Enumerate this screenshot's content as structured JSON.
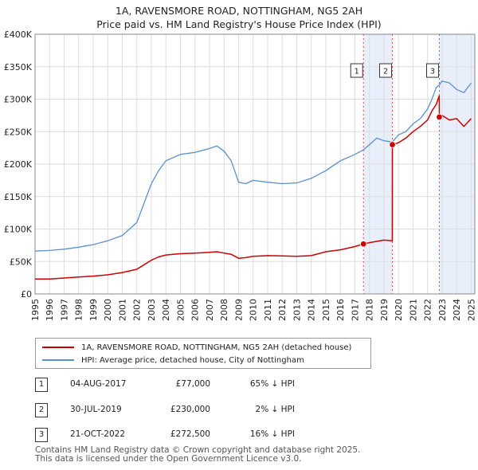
{
  "chart_data": {
    "type": "line",
    "title": "1A, RAVENSMORE ROAD, NOTTINGHAM, NG5 2AH",
    "subtitle": "Price paid vs. HM Land Registry's House Price Index (HPI)",
    "xlim": [
      1995,
      2025.25
    ],
    "ylim": [
      0,
      400000
    ],
    "y_ticks": [
      0,
      50000,
      100000,
      150000,
      200000,
      250000,
      300000,
      350000,
      400000
    ],
    "y_tick_labels": [
      "£0",
      "£50K",
      "£100K",
      "£150K",
      "£200K",
      "£250K",
      "£300K",
      "£350K",
      "£400K"
    ],
    "x_ticks": [
      1995,
      1996,
      1997,
      1998,
      1999,
      2000,
      2001,
      2002,
      2003,
      2004,
      2005,
      2006,
      2007,
      2008,
      2009,
      2010,
      2011,
      2012,
      2013,
      2014,
      2015,
      2016,
      2017,
      2018,
      2019,
      2020,
      2021,
      2022,
      2023,
      2024,
      2025
    ],
    "x_tick_labels": [
      "1995",
      "1996",
      "1997",
      "1998",
      "1999",
      "2000",
      "2001",
      "2002",
      "2003",
      "2004",
      "2005",
      "2006",
      "2007",
      "2008",
      "2009",
      "2010",
      "2011",
      "2012",
      "2013",
      "2014",
      "2015",
      "2016",
      "2017",
      "2018",
      "2019",
      "2020",
      "2021",
      "2022",
      "2023",
      "2024",
      "2025"
    ],
    "series": [
      {
        "name": "1A, RAVENSMORE ROAD, NOTTINGHAM, NG5 2AH (detached house)",
        "color": "#cc0000",
        "x": [
          1995,
          1996,
          1997,
          1998,
          1999,
          2000,
          2001,
          2002,
          2002.5,
          2003,
          2003.5,
          2004,
          2004.5,
          2005,
          2006,
          2007,
          2007.5,
          2008,
          2008.5,
          2009,
          2009.5,
          2010,
          2011,
          2012,
          2013,
          2014,
          2015,
          2016,
          2017,
          2017.59,
          2018,
          2018.5,
          2019,
          2019.57,
          2019.58,
          2020,
          2020.5,
          2021,
          2021.5,
          2022,
          2022.3,
          2022.6,
          2022.8,
          2022.81,
          2023,
          2023.5,
          2024,
          2024.5,
          2025
        ],
        "y": [
          23000,
          23000,
          24500,
          26000,
          27500,
          29500,
          33000,
          38000,
          45000,
          52000,
          57000,
          60000,
          61000,
          62000,
          63000,
          64000,
          65000,
          63000,
          61000,
          55000,
          56000,
          58000,
          59000,
          58500,
          58000,
          59000,
          65000,
          68000,
          73000,
          77000,
          79000,
          81000,
          83000,
          82000,
          230000,
          233000,
          240000,
          250000,
          258000,
          268000,
          282000,
          292000,
          305000,
          272500,
          275000,
          268000,
          270000,
          258000,
          270000
        ]
      },
      {
        "name": "HPI: Average price, detached house, City of Nottingham",
        "color": "#5b8fd0",
        "x": [
          1995,
          1996,
          1997,
          1998,
          1999,
          2000,
          2001,
          2002,
          2002.5,
          2003,
          2003.5,
          2004,
          2004.5,
          2005,
          2006,
          2007,
          2007.5,
          2008,
          2008.5,
          2009,
          2009.5,
          2010,
          2011,
          2012,
          2013,
          2014,
          2015,
          2016,
          2017,
          2017.59,
          2018,
          2018.5,
          2019,
          2019.57,
          2020,
          2020.5,
          2021,
          2021.5,
          2022,
          2022.3,
          2022.6,
          2022.81,
          2023,
          2023.5,
          2024,
          2024.5,
          2025
        ],
        "y": [
          66000,
          67000,
          69000,
          72000,
          76000,
          82000,
          90000,
          110000,
          140000,
          170000,
          190000,
          205000,
          210000,
          215000,
          218000,
          224000,
          228000,
          220000,
          205000,
          172000,
          170000,
          175000,
          172000,
          170000,
          171000,
          178000,
          190000,
          205000,
          215000,
          222000,
          230000,
          240000,
          236000,
          234000,
          245000,
          250000,
          262000,
          270000,
          285000,
          300000,
          318000,
          322000,
          328000,
          325000,
          315000,
          310000,
          325000
        ]
      }
    ],
    "sale_markers": [
      {
        "label": "1",
        "x": 2017.59,
        "y": 77000
      },
      {
        "label": "2",
        "x": 2019.58,
        "y": 230000
      },
      {
        "label": "3",
        "x": 2022.81,
        "y": 272500
      }
    ],
    "shaded_bands": [
      [
        2017.59,
        2019.58
      ],
      [
        2022.81,
        2025.25
      ]
    ]
  },
  "legend": {
    "property_label": "1A, RAVENSMORE ROAD, NOTTINGHAM, NG5 2AH (detached house)",
    "hpi_label": "HPI: Average price, detached house, City of Nottingham"
  },
  "sales": [
    {
      "num": "1",
      "date": "04-AUG-2017",
      "price": "£77,000",
      "hpi": "65% ↓ HPI"
    },
    {
      "num": "2",
      "date": "30-JUL-2019",
      "price": "£230,000",
      "hpi": "2% ↓ HPI"
    },
    {
      "num": "3",
      "date": "21-OCT-2022",
      "price": "£272,500",
      "hpi": "16% ↓ HPI"
    }
  ],
  "footer": {
    "line1": "Contains HM Land Registry data © Crown copyright and database right 2025.",
    "line2": "This data is licensed under the Open Government Licence v3.0."
  },
  "colors": {
    "property": "#cc0000",
    "hpi": "#5b8fd0",
    "band": "#e8eefa",
    "grid": "#dddddd"
  }
}
